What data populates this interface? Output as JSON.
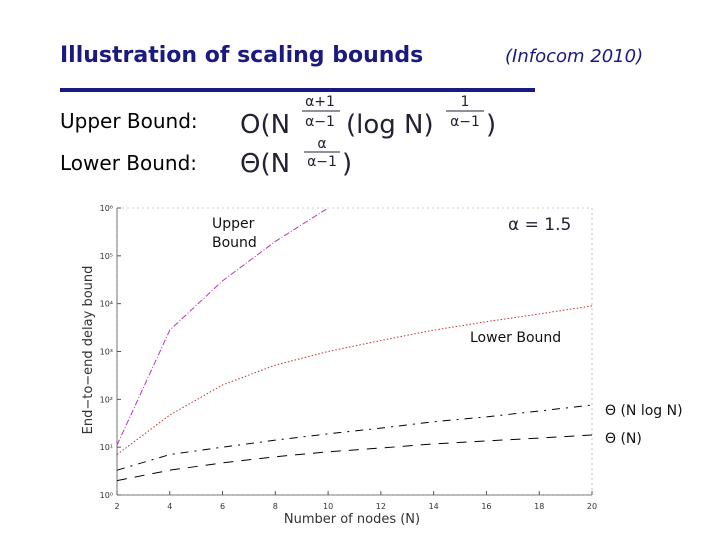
{
  "slide": {
    "title": "Illustration of scaling bounds",
    "subtitle": "(Infocom 2010)",
    "upper_label": "Upper Bound:",
    "lower_label": "Lower Bound:",
    "upper_formula": {
      "open": "O(N",
      "num1": "α+1",
      "den1": "α−1",
      "mid": "(log N)",
      "num2": "1",
      "den2": "α−1",
      "close": ")"
    },
    "lower_formula": {
      "open": "Θ(N",
      "num": "α",
      "den": "α−1",
      "close": ")"
    }
  },
  "chart_data": {
    "type": "line",
    "log_y": true,
    "x_label": "Number of nodes (N)",
    "y_label": "End−to−end delay bound",
    "x": [
      2,
      4,
      6,
      8,
      10,
      12,
      14,
      16,
      18,
      20
    ],
    "series": [
      {
        "name": "Upper Bound",
        "color": "#c030c0",
        "dash": "6 2 1 2",
        "values": [
          11,
          2800,
          30000,
          200000,
          1000000,
          null,
          null,
          null,
          null,
          null
        ]
      },
      {
        "name": "Lower Bound",
        "color": "#c03030",
        "dash": "1.5 2",
        "values": [
          7,
          47,
          200,
          520,
          1000,
          1700,
          2800,
          4200,
          6100,
          9000
        ]
      },
      {
        "name": "Θ (N log N)",
        "color": "#000000",
        "dash": "8 6 2 6",
        "values": [
          3.3,
          7,
          10,
          14,
          19,
          25,
          34,
          43,
          57,
          76
        ]
      },
      {
        "name": "Θ (N)",
        "color": "#000000",
        "dash": "10 8",
        "values": [
          2,
          3.3,
          4.7,
          6.3,
          8,
          9.6,
          11.7,
          13.5,
          15.5,
          18
        ]
      }
    ],
    "annotations": [
      {
        "text": "α = 1.5"
      }
    ],
    "xlim": [
      2,
      20
    ],
    "xticks": [
      2,
      4,
      6,
      8,
      10,
      12,
      14,
      16,
      18,
      20
    ],
    "ylim": [
      1,
      1000000
    ],
    "yticks": [
      {
        "value": 1,
        "label": "10⁰"
      },
      {
        "value": 10,
        "label": "10¹"
      },
      {
        "value": 100,
        "label": "10²"
      },
      {
        "value": 1000,
        "label": "10³"
      },
      {
        "value": 10000,
        "label": "10⁴"
      },
      {
        "value": 100000,
        "label": "10⁵"
      },
      {
        "value": 1000000,
        "label": "10⁶"
      }
    ]
  }
}
